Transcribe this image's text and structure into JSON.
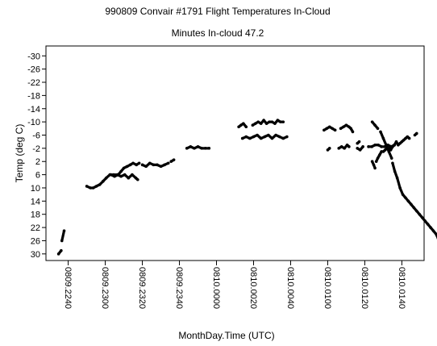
{
  "chart_data": {
    "type": "scatter",
    "title": "990809 Convair #1791 Flight Temperatures In-Cloud",
    "subtitle": "Minutes In-cloud 47.2",
    "xlabel": "MonthDay.Time (UTC)",
    "ylabel": "Temp (deg C)",
    "xlim": [
      809.2228,
      810.0152
    ],
    "ylim": [
      32,
      -33
    ],
    "y_inverted": true,
    "x_tick_values": [
      809.224,
      809.23,
      809.232,
      809.234,
      810.0,
      810.002,
      810.004,
      810.01,
      810.012,
      810.014
    ],
    "x_tick_labels": [
      "0809.2240",
      "0809.2300",
      "0809.2320",
      "0809.2340",
      "0810.0000",
      "0810.0020",
      "0810.0040",
      "0810.0100",
      "0810.0120",
      "0810.0140"
    ],
    "y_tick_values": [
      -30,
      -26,
      -22,
      -18,
      -14,
      -10,
      -6,
      -2,
      2,
      6,
      10,
      14,
      18,
      22,
      26,
      30
    ],
    "y_tick_labels": [
      "-30",
      "-26",
      "-22",
      "-18",
      "-14",
      "-10",
      "-6",
      "-2",
      "2",
      "6",
      "10",
      "14",
      "18",
      "22",
      "26",
      "30"
    ],
    "grid": false,
    "marker_color": "#000000",
    "segments": [
      {
        "x": [
          809.22348,
          809.22362
        ],
        "y": [
          30,
          29
        ]
      },
      {
        "x": [
          809.22366,
          809.22378
        ],
        "y": [
          26,
          23
        ]
      },
      {
        "x": [
          809.225,
          809.2252,
          809.22535,
          809.22552,
          809.2257,
          809.22588
        ],
        "y": [
          9.5,
          10,
          10,
          9.5,
          9,
          8
        ]
      },
      {
        "x": [
          809.22588,
          809.22605,
          809.22625,
          809.22645,
          809.22665,
          809.22685,
          809.22705,
          809.22725,
          809.22745,
          809.22765,
          809.22775
        ],
        "y": [
          8,
          7,
          6,
          6,
          6,
          6.5,
          6,
          7,
          6,
          7,
          7.5
        ]
      },
      {
        "x": [
          809.2303,
          809.2305,
          809.2307,
          809.23085,
          809.231,
          809.23118
        ],
        "y": [
          6,
          6.5,
          6,
          5,
          4,
          3.5
        ]
      },
      {
        "x": [
          809.23118,
          809.23135,
          809.2315,
          809.23168,
          809.23183
        ],
        "y": [
          3.5,
          3,
          2.5,
          3,
          2.5
        ]
      },
      {
        "x": [
          809.232,
          809.2322,
          809.2324,
          809.2326,
          809.2328,
          809.233,
          809.2332,
          809.2334
        ],
        "y": [
          3,
          3.5,
          2.5,
          3,
          3,
          3.5,
          3,
          2.5
        ]
      },
      {
        "x": [
          809.23355,
          809.2337
        ],
        "y": [
          2,
          1.5
        ]
      },
      {
        "x": [
          809.2344,
          809.2346,
          809.2348,
          809.235,
          809.2352,
          809.2354,
          809.2356
        ],
        "y": [
          -2,
          -2.5,
          -2,
          -2.5,
          -2,
          -2,
          -2
        ]
      },
      {
        "x": [
          809.2374,
          809.2376,
          809.2378,
          809.238,
          809.2382,
          809.2384,
          809.2386,
          809.2388,
          809.239,
          809.2392,
          809.2394,
          809.2396,
          809.2398
        ],
        "y": [
          -5,
          -5.5,
          -5,
          -5.5,
          -6,
          -5,
          -5.5,
          -6,
          -5,
          -6,
          -5.5,
          -5,
          -5.5
        ]
      },
      {
        "x": [
          810.0012,
          810.00132,
          810.00145,
          810.0016
        ],
        "y": [
          -8.5,
          -9,
          -9.5,
          -8.5
        ]
      },
      {
        "x": [
          810.00195,
          810.0021,
          810.00225,
          810.0024,
          810.00255,
          810.0027,
          810.00285,
          810.003,
          810.00315,
          810.0033,
          810.00345,
          810.0036
        ],
        "y": [
          -9,
          -9.5,
          -10,
          -9.5,
          -10.5,
          -9.5,
          -10,
          -10,
          -9.5,
          -10.5,
          -10,
          -10
        ]
      },
      {
        "x": [
          810.0058,
          810.00595,
          810.0061,
          810.00625,
          810.0064
        ],
        "y": [
          -7.5,
          -8,
          -8.5,
          -8,
          -7.5
        ]
      },
      {
        "x": [
          810.0067,
          810.00685,
          810.007,
          810.00715,
          810.00725,
          810.00735
        ],
        "y": [
          -8,
          -8.5,
          -9,
          -8.5,
          -8,
          -7
        ]
      },
      {
        "x": [
          810.0076,
          810.0077
        ],
        "y": [
          -3.5,
          -4
        ]
      },
      {
        "x": [
          810.0082,
          810.00838,
          810.00855,
          810.00873,
          810.0089,
          810.00908,
          810.00925,
          810.00942,
          810.0096
        ],
        "y": [
          -2.5,
          -2.5,
          -3,
          -3,
          -2.5,
          -2.5,
          -3,
          -2.5,
          -3
        ]
      },
      {
        "x": [
          810.01,
          810.0101
        ],
        "y": [
          -1.5,
          -2
        ]
      },
      {
        "x": [
          810.0106,
          810.01075,
          810.0109,
          810.01105,
          810.01115
        ],
        "y": [
          -2,
          -2.5,
          -2,
          -3,
          -2.5
        ]
      },
      {
        "x": [
          810.0116,
          810.01175,
          810.0119
        ],
        "y": [
          -2,
          -1.5,
          -2.5
        ]
      },
      {
        "x": [
          810.0124,
          810.01248,
          810.01255
        ],
        "y": [
          2,
          3,
          4
        ]
      },
      {
        "x": [
          810.01262,
          810.0127,
          810.0128,
          810.0129,
          810.013,
          810.0131,
          810.0132,
          810.0133,
          810.0134,
          810.0135,
          810.0136,
          810.0137,
          810.0138,
          810.0139,
          810.014,
          810.0141,
          810.0142,
          810.0143,
          810.0144
        ],
        "y": [
          2,
          1,
          0,
          -1,
          -1,
          -1.5,
          -2,
          -2,
          -1.5,
          -2.5,
          -3,
          -4,
          -3,
          -3.5,
          -4,
          -4.5,
          -5,
          -5.5,
          -5
        ]
      },
      {
        "x": [
          810.0147,
          810.0148
        ],
        "y": [
          -6,
          -6.5
        ]
      },
      {
        "x": [
          810.0124,
          810.01255,
          810.0127
        ],
        "y": [
          -10,
          -9,
          -8
        ]
      },
      {
        "x": [
          810.01285,
          810.013,
          810.01315,
          810.0133,
          810.01345
        ],
        "y": [
          -7,
          -5,
          -3,
          -1,
          1
        ]
      },
      {
        "x": [
          810.0135,
          810.01362,
          810.01375,
          810.0139,
          810.01405,
          810.0142,
          810.01435,
          810.0145,
          810.01465,
          810.0148,
          810.01495,
          810.0151,
          810.01525,
          810.0154,
          810.01555,
          810.0157,
          810.01585,
          810.016
        ],
        "y": [
          2.5,
          5,
          7,
          10,
          12,
          13,
          14,
          15,
          16,
          17,
          18,
          19,
          20,
          21,
          22,
          23,
          24,
          26
        ]
      }
    ]
  }
}
